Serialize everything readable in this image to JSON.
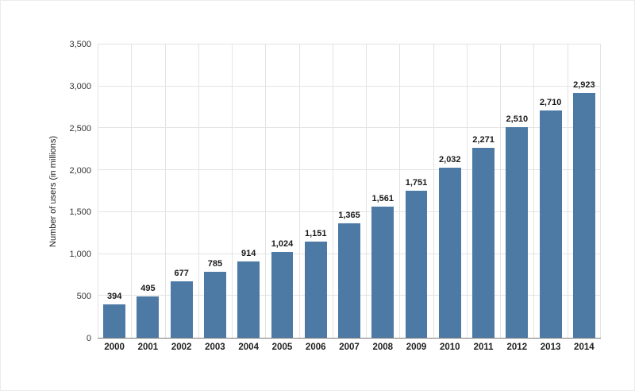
{
  "chart_data": {
    "type": "bar",
    "title": "",
    "xlabel": "",
    "ylabel": "Number of users (in millions)",
    "categories": [
      "2000",
      "2001",
      "2002",
      "2003",
      "2004",
      "2005",
      "2006",
      "2007",
      "2008",
      "2009",
      "2010",
      "2011",
      "2012",
      "2013",
      "2014"
    ],
    "values": [
      394,
      495,
      677,
      785,
      914,
      1024,
      1151,
      1365,
      1561,
      1751,
      2032,
      2271,
      2510,
      2710,
      2923
    ],
    "value_labels": [
      "394",
      "495",
      "677",
      "785",
      "914",
      "1,024",
      "1,151",
      "1,365",
      "1,561",
      "1,751",
      "2,032",
      "2,271",
      "2,510",
      "2,710",
      "2,923"
    ],
    "ylim": [
      0,
      3500
    ],
    "yticks": [
      0,
      500,
      1000,
      1500,
      2000,
      2500,
      3000,
      3500
    ],
    "ytick_labels": [
      "0",
      "500",
      "1,000",
      "1,500",
      "2,000",
      "2,500",
      "3,000",
      "3,500"
    ],
    "grid": true,
    "legend": "none",
    "bar_color": "#4d7aa5",
    "grid_color": "#e3e3e3",
    "axis_color": "#7a7a7a"
  }
}
